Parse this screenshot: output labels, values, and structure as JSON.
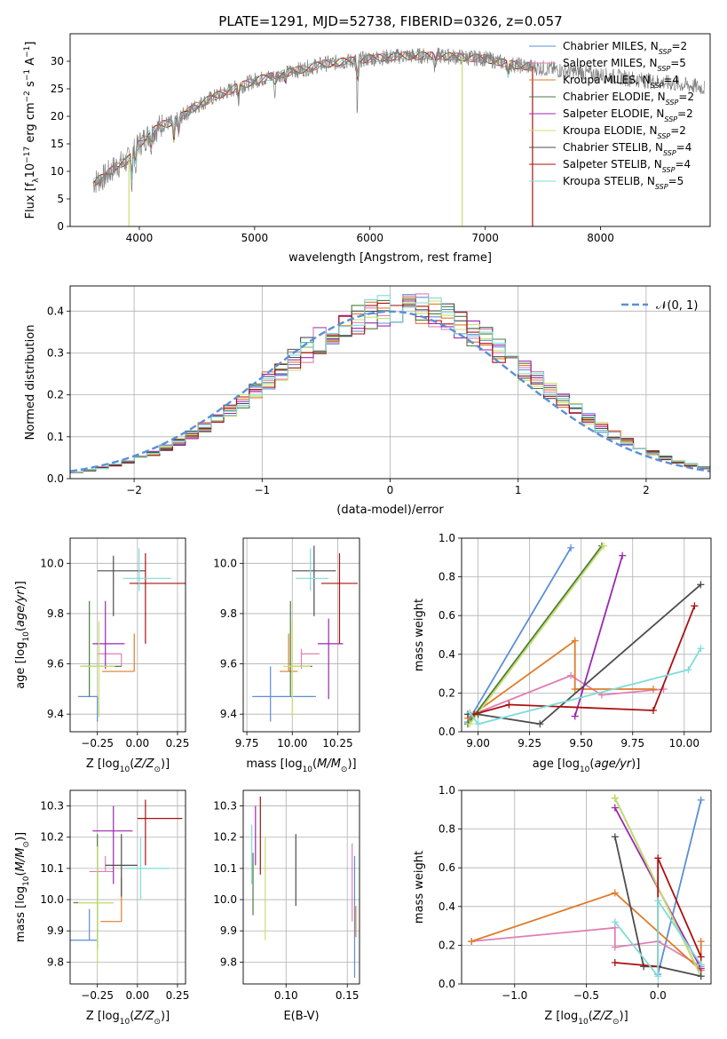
{
  "figure": {
    "title": "PLATE=1291, MJD=52738, FIBERID=0326, z=0.057"
  },
  "colors": {
    "Chabrier MILES": "#5b8fd6",
    "Salpeter MILES": "#e07fb4",
    "Kroupa MILES": "#e07b2a",
    "Chabrier ELODIE": "#4e7a3f",
    "Salpeter ELODIE": "#9c27b0",
    "Kroupa ELODIE": "#c7e06a",
    "Chabrier STELIB": "#4d4d4d",
    "Salpeter STELIB": "#aa1111",
    "Kroupa STELIB": "#7fdcd8",
    "normal": "#5b8fd6",
    "grid": "#b0b0b0"
  },
  "chart_data": [
    {
      "id": "spectrum",
      "type": "line",
      "xlabel": "wavelength [Angstrom, rest frame]",
      "ylabel": "Flux [f_λ 10^-17 erg cm^-2 s^-1 A^-1]",
      "xlim": [
        3400,
        8950
      ],
      "ylim": [
        0,
        35
      ],
      "xticks": [
        4000,
        5000,
        6000,
        7000,
        8000
      ],
      "yticks": [
        0,
        5,
        10,
        15,
        20,
        25,
        30
      ],
      "grid": false,
      "legend_position": "right",
      "legend": [
        {
          "base": "Chabrier MILES, N",
          "sub": "SSP",
          "tail": "=2"
        },
        {
          "base": "Salpeter MILES, N",
          "sub": "SSP",
          "tail": "=5"
        },
        {
          "base": "Kroupa MILES, N",
          "sub": "SSP",
          "tail": "=4"
        },
        {
          "base": "Chabrier ELODIE, N",
          "sub": "SSP",
          "tail": "=2"
        },
        {
          "base": "Salpeter ELODIE, N",
          "sub": "SSP",
          "tail": "=2"
        },
        {
          "base": "Kroupa ELODIE, N",
          "sub": "SSP",
          "tail": "=2"
        },
        {
          "base": "Chabrier STELIB, N",
          "sub": "SSP",
          "tail": "=4"
        },
        {
          "base": "Salpeter STELIB, N",
          "sub": "SSP",
          "tail": "=4"
        },
        {
          "base": "Kroupa STELIB, N",
          "sub": "SSP",
          "tail": "=5"
        }
      ],
      "data_series": {
        "name": "observed",
        "color": "#808080"
      },
      "continuum_knots": {
        "x": [
          3600,
          3700,
          3800,
          3900,
          4000,
          4100,
          4200,
          4300,
          4400,
          4500,
          4700,
          5000,
          5300,
          5600,
          6000,
          6300,
          6600,
          7000,
          7200,
          7400,
          7600,
          7800,
          8000,
          8200,
          8400,
          8600,
          8800,
          8950
        ],
        "y": [
          8,
          9,
          11,
          12,
          15,
          17,
          18.5,
          19,
          20.5,
          22,
          24,
          26.5,
          28,
          29.5,
          30.5,
          31,
          31,
          30.5,
          29.5,
          29,
          28.5,
          28,
          27.5,
          27,
          26.5,
          26,
          25.5,
          25
        ]
      },
      "absorption_lines": [
        {
          "x": 3934,
          "depth": 6
        },
        {
          "x": 3969,
          "depth": 5
        },
        {
          "x": 4102,
          "depth": 3
        },
        {
          "x": 4300,
          "depth": 4
        },
        {
          "x": 4340,
          "depth": 3
        },
        {
          "x": 4861,
          "depth": 3
        },
        {
          "x": 5175,
          "depth": 4
        },
        {
          "x": 5270,
          "depth": 2
        },
        {
          "x": 5890,
          "depth": 11
        },
        {
          "x": 6563,
          "depth": 3
        },
        {
          "x": 7200,
          "depth": 3
        }
      ],
      "spikes": [
        {
          "x": 3910,
          "color": "#c7e06a"
        },
        {
          "x": 6800,
          "color": "#c7e06a"
        },
        {
          "x": 7410,
          "color": "#aa1111"
        }
      ]
    },
    {
      "id": "residuals",
      "type": "histogram",
      "xlabel": "(data-model)/error",
      "ylabel": "Normed distribution",
      "xlim": [
        -2.5,
        2.5
      ],
      "ylim": [
        0,
        0.46
      ],
      "xticks": [
        -2,
        -1,
        0,
        1,
        2
      ],
      "yticks": [
        0.0,
        0.1,
        0.2,
        0.3,
        0.4
      ],
      "grid": true,
      "legend_position": "top-right",
      "legend_label": "𝒩(0, 1)",
      "bin_width": 0.1,
      "reference_curve": "standard normal pdf"
    },
    {
      "id": "age_vs_Z",
      "type": "scatter",
      "xlabel": "Z [log10(Z/Z⊙)]",
      "ylabel": "age  [log10(age/yr)]",
      "xlim": [
        -0.42,
        0.3
      ],
      "ylim": [
        9.33,
        10.1
      ],
      "xticks": [
        -0.25,
        0.0,
        0.25
      ],
      "yticks": [
        9.4,
        9.6,
        9.8,
        10.0
      ],
      "grid": true,
      "errorbars": [
        {
          "series": "Chabrier MILES",
          "x": -0.25,
          "y": 9.47,
          "xerr": [
            0.12,
            0.0
          ],
          "yerr": [
            0.1,
            0.0
          ]
        },
        {
          "series": "Salpeter MILES",
          "x": -0.1,
          "y": 9.64,
          "xerr": [
            0.15,
            0.0
          ],
          "yerr": [
            0.05,
            0.0
          ]
        },
        {
          "series": "Kroupa MILES",
          "x": -0.02,
          "y": 9.57,
          "xerr": [
            0.2,
            0.0
          ],
          "yerr": [
            0.0,
            0.15
          ]
        },
        {
          "series": "Chabrier ELODIE",
          "x": -0.3,
          "y": 9.59,
          "xerr": [
            0.05,
            0.2
          ],
          "yerr": [
            0.12,
            0.26
          ]
        },
        {
          "series": "Salpeter ELODIE",
          "x": -0.2,
          "y": 9.68,
          "xerr": [
            0.08,
            0.12
          ],
          "yerr": [
            0.1,
            0.17
          ]
        },
        {
          "series": "Kroupa ELODIE",
          "x": -0.24,
          "y": 9.59,
          "xerr": [
            0.12,
            0.1
          ],
          "yerr": [
            0.2,
            0.18
          ]
        },
        {
          "series": "Chabrier STELIB",
          "x": -0.15,
          "y": 9.97,
          "xerr": [
            0.1,
            0.2
          ],
          "yerr": [
            0.18,
            0.06
          ]
        },
        {
          "series": "Salpeter STELIB",
          "x": 0.05,
          "y": 9.92,
          "xerr": [
            0.1,
            0.25
          ],
          "yerr": [
            0.24,
            0.12
          ]
        },
        {
          "series": "Kroupa STELIB",
          "x": 0.01,
          "y": 9.94,
          "xerr": [
            0.1,
            0.2
          ],
          "yerr": [
            0.05,
            0.12
          ]
        }
      ]
    },
    {
      "id": "age_vs_mass",
      "type": "scatter",
      "xlabel": "mass [log10(M/M⊙)]",
      "ylabel": "",
      "xlim": [
        9.73,
        10.37
      ],
      "ylim": [
        9.33,
        10.1
      ],
      "xticks": [
        9.75,
        10.0,
        10.25
      ],
      "yticks": [
        9.4,
        9.6,
        9.8,
        10.0
      ],
      "grid": true,
      "errorbars": [
        {
          "series": "Chabrier MILES",
          "x": 9.88,
          "y": 9.47,
          "xerr": [
            0.1,
            0.25
          ],
          "yerr": [
            0.1,
            0.12
          ]
        },
        {
          "series": "Salpeter MILES",
          "x": 10.05,
          "y": 9.64,
          "xerr": [
            0.0,
            0.1
          ],
          "yerr": [
            0.06,
            0.02
          ]
        },
        {
          "series": "Kroupa MILES",
          "x": 9.98,
          "y": 9.57,
          "xerr": [
            0.05,
            0.05
          ],
          "yerr": [
            0.0,
            0.15
          ]
        },
        {
          "series": "Chabrier ELODIE",
          "x": 9.99,
          "y": 9.59,
          "xerr": [
            0.0,
            0.12
          ],
          "yerr": [
            0.12,
            0.26
          ]
        },
        {
          "series": "Salpeter ELODIE",
          "x": 10.2,
          "y": 9.68,
          "xerr": [
            0.06,
            0.08
          ],
          "yerr": [
            0.22,
            0.1
          ]
        },
        {
          "series": "Kroupa ELODIE",
          "x": 10.0,
          "y": 9.59,
          "xerr": [
            0.05,
            0.1
          ],
          "yerr": [
            0.2,
            0.18
          ]
        },
        {
          "series": "Chabrier STELIB",
          "x": 10.12,
          "y": 9.97,
          "xerr": [
            0.12,
            0.12
          ],
          "yerr": [
            0.18,
            0.1
          ]
        },
        {
          "series": "Salpeter STELIB",
          "x": 10.26,
          "y": 9.92,
          "xerr": [
            0.1,
            0.1
          ],
          "yerr": [
            0.24,
            0.12
          ]
        },
        {
          "series": "Kroupa STELIB",
          "x": 10.1,
          "y": 9.94,
          "xerr": [
            0.08,
            0.1
          ],
          "yerr": [
            0.05,
            0.12
          ]
        }
      ]
    },
    {
      "id": "weight_vs_age",
      "type": "line",
      "xlabel": "age  [log10(age/yr)]",
      "ylabel": "mass weight",
      "xlim": [
        8.92,
        10.13
      ],
      "ylim": [
        0.0,
        1.0
      ],
      "xticks": [
        9.0,
        9.25,
        9.5,
        9.75,
        10.0
      ],
      "yticks": [
        0.0,
        0.2,
        0.4,
        0.6,
        0.8,
        1.0
      ],
      "grid": true,
      "series": [
        {
          "name": "Chabrier MILES",
          "x": [
            8.95,
            9.45
          ],
          "y": [
            0.05,
            0.95
          ]
        },
        {
          "name": "Salpeter MILES",
          "x": [
            8.95,
            9.0,
            9.45,
            9.6,
            9.9
          ],
          "y": [
            0.09,
            0.1,
            0.29,
            0.19,
            0.22
          ]
        },
        {
          "name": "Kroupa MILES",
          "x": [
            8.95,
            9.47,
            9.47,
            9.85
          ],
          "y": [
            0.07,
            0.47,
            0.22,
            0.22
          ]
        },
        {
          "name": "Chabrier ELODIE",
          "x": [
            8.95,
            9.6
          ],
          "y": [
            0.04,
            0.96
          ]
        },
        {
          "name": "Salpeter ELODIE",
          "x": [
            9.47,
            9.7
          ],
          "y": [
            0.08,
            0.91
          ]
        },
        {
          "name": "Kroupa ELODIE",
          "x": [
            8.96,
            9.61
          ],
          "y": [
            0.04,
            0.96
          ]
        },
        {
          "name": "Chabrier STELIB",
          "x": [
            8.95,
            9.0,
            9.3,
            10.08
          ],
          "y": [
            0.09,
            0.09,
            0.04,
            0.76
          ]
        },
        {
          "name": "Salpeter STELIB",
          "x": [
            8.98,
            9.15,
            9.85,
            10.05
          ],
          "y": [
            0.09,
            0.14,
            0.11,
            0.65
          ]
        },
        {
          "name": "Kroupa STELIB",
          "x": [
            8.96,
            9.0,
            10.02,
            10.08
          ],
          "y": [
            0.1,
            0.04,
            0.32,
            0.43
          ]
        }
      ]
    },
    {
      "id": "mass_vs_Z",
      "type": "scatter",
      "xlabel": "Z [log10(Z/Z⊙)]",
      "ylabel": "mass [log10(M/M⊙)]",
      "xlim": [
        -0.42,
        0.3
      ],
      "ylim": [
        9.73,
        10.35
      ],
      "xticks": [
        -0.25,
        0.0,
        0.25
      ],
      "yticks": [
        9.8,
        9.9,
        10.0,
        10.1,
        10.2,
        10.3
      ],
      "grid": true,
      "errorbars": [
        {
          "series": "Chabrier MILES",
          "x": -0.3,
          "y": 9.87,
          "xerr": [
            0.12,
            0.05
          ],
          "yerr": [
            0.0,
            0.1
          ]
        },
        {
          "series": "Salpeter MILES",
          "x": -0.2,
          "y": 10.09,
          "xerr": [
            0.1,
            0.05
          ],
          "yerr": [
            0.0,
            0.05
          ]
        },
        {
          "series": "Kroupa MILES",
          "x": -0.1,
          "y": 9.93,
          "xerr": [
            0.13,
            0.0
          ],
          "yerr": [
            0.0,
            0.14
          ]
        },
        {
          "series": "Chabrier ELODIE",
          "x": -0.25,
          "y": 9.99,
          "xerr": [
            0.15,
            0.1
          ],
          "yerr": [
            0.15,
            0.22
          ]
        },
        {
          "series": "Salpeter ELODIE",
          "x": -0.15,
          "y": 10.22,
          "xerr": [
            0.13,
            0.12
          ],
          "yerr": [
            0.17,
            0.08
          ]
        },
        {
          "series": "Kroupa ELODIE",
          "x": -0.25,
          "y": 9.99,
          "xerr": [
            0.12,
            0.1
          ],
          "yerr": [
            0.2,
            0.18
          ]
        },
        {
          "series": "Chabrier STELIB",
          "x": -0.1,
          "y": 10.11,
          "xerr": [
            0.1,
            0.1
          ],
          "yerr": [
            0.1,
            0.1
          ]
        },
        {
          "series": "Salpeter STELIB",
          "x": 0.05,
          "y": 10.26,
          "xerr": [
            0.05,
            0.23
          ],
          "yerr": [
            0.15,
            0.06
          ]
        },
        {
          "series": "Kroupa STELIB",
          "x": 0.02,
          "y": 10.1,
          "xerr": [
            0.1,
            0.18
          ],
          "yerr": [
            0.1,
            0.1
          ]
        }
      ]
    },
    {
      "id": "mass_vs_EBV",
      "type": "scatter",
      "xlabel": "E(B-V)",
      "ylabel": "",
      "xlim": [
        0.065,
        0.16
      ],
      "ylim": [
        9.73,
        10.35
      ],
      "xticks": [
        0.1,
        0.15
      ],
      "yticks": [
        9.8,
        9.9,
        10.0,
        10.1,
        10.2,
        10.3
      ],
      "grid": true,
      "errorbars": [
        {
          "series": "Chabrier MILES",
          "x": 0.156,
          "y": 9.95,
          "xerr": [
            0.0,
            0.0
          ],
          "yerr": [
            0.2,
            0.19
          ]
        },
        {
          "series": "Salpeter MILES",
          "x": 0.154,
          "y": 10.06,
          "xerr": [
            0.0,
            0.0
          ],
          "yerr": [
            0.13,
            0.12
          ]
        },
        {
          "series": "Kroupa MILES",
          "x": 0.157,
          "y": 9.93,
          "xerr": [
            0.0,
            0.0
          ],
          "yerr": [
            0.05,
            0.05
          ]
        },
        {
          "series": "Chabrier ELODIE",
          "x": 0.073,
          "y": 10.05,
          "xerr": [
            0.0,
            0.0
          ],
          "yerr": [
            0.1,
            0.1
          ]
        },
        {
          "series": "Salpeter ELODIE",
          "x": 0.075,
          "y": 10.19,
          "xerr": [
            0.0,
            0.0
          ],
          "yerr": [
            0.08,
            0.11
          ]
        },
        {
          "series": "Kroupa ELODIE",
          "x": 0.083,
          "y": 10.03,
          "xerr": [
            0.0,
            0.0
          ],
          "yerr": [
            0.16,
            0.17
          ]
        },
        {
          "series": "Chabrier STELIB",
          "x": 0.108,
          "y": 10.1,
          "xerr": [
            0.0,
            0.0
          ],
          "yerr": [
            0.12,
            0.11
          ]
        },
        {
          "series": "Salpeter STELIB",
          "x": 0.079,
          "y": 10.2,
          "xerr": [
            0.0,
            0.0
          ],
          "yerr": [
            0.12,
            0.13
          ]
        },
        {
          "series": "Kroupa STELIB",
          "x": 0.072,
          "y": 10.1,
          "xerr": [
            0.0,
            0.0
          ],
          "yerr": [
            0.05,
            0.14
          ]
        }
      ]
    },
    {
      "id": "weight_vs_Z",
      "type": "line",
      "xlabel": "Z [log10(Z/Z⊙)]",
      "ylabel": "mass weight",
      "xlim": [
        -1.37,
        0.37
      ],
      "ylim": [
        0.0,
        1.0
      ],
      "xticks": [
        -1.0,
        -0.5,
        0.0
      ],
      "yticks": [
        0.0,
        0.2,
        0.4,
        0.6,
        0.8,
        1.0
      ],
      "grid": true,
      "series": [
        {
          "name": "Chabrier MILES",
          "x": [
            0.0,
            0.3
          ],
          "y": [
            0.05,
            0.95
          ]
        },
        {
          "name": "Salpeter MILES",
          "x": [
            -1.3,
            -0.3,
            -0.3,
            -0.0,
            0.3
          ],
          "y": [
            0.22,
            0.29,
            0.19,
            0.22,
            0.09
          ]
        },
        {
          "name": "Kroupa MILES",
          "x": [
            -1.3,
            -0.3,
            0.3,
            0.3
          ],
          "y": [
            0.22,
            0.47,
            0.07,
            0.22
          ]
        },
        {
          "name": "Chabrier ELODIE",
          "x": [
            -0.3,
            0.3
          ],
          "y": [
            0.96,
            0.04
          ]
        },
        {
          "name": "Salpeter ELODIE",
          "x": [
            -0.3,
            0.3
          ],
          "y": [
            0.91,
            0.08
          ]
        },
        {
          "name": "Kroupa ELODIE",
          "x": [
            -0.3,
            0.3
          ],
          "y": [
            0.96,
            0.04
          ]
        },
        {
          "name": "Chabrier STELIB",
          "x": [
            -0.3,
            -0.1,
            0.0,
            0.3
          ],
          "y": [
            0.76,
            0.09,
            0.09,
            0.04
          ]
        },
        {
          "name": "Salpeter STELIB",
          "x": [
            -0.3,
            0.0,
            0.0,
            0.3
          ],
          "y": [
            0.11,
            0.09,
            0.65,
            0.14
          ]
        },
        {
          "name": "Kroupa STELIB",
          "x": [
            -0.3,
            0.0,
            0.0,
            0.3
          ],
          "y": [
            0.32,
            0.04,
            0.43,
            0.1
          ]
        }
      ]
    }
  ]
}
